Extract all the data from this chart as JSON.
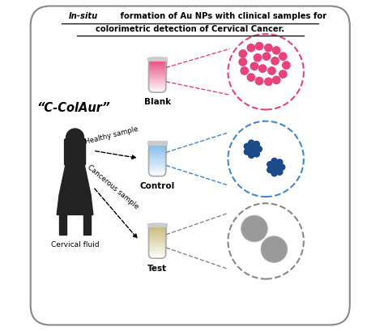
{
  "title_line1_italic": "In-situ",
  "title_line1_rest": " formation of Au NPs with clinical samples for",
  "title_line2": "colorimetric detection of Cervical Cancer.",
  "background_color": "#ffffff",
  "border_color": "#888888",
  "label_blank": "Blank",
  "label_control": "Control",
  "label_test": "Test",
  "label_ccolaur": "“C-ColAur”",
  "label_cervical": "Cervical fluid",
  "label_healthy": "Healthy sample",
  "label_cancerous": "Cancerous sample",
  "tube_blank_color_bottom": "#e8437a",
  "tube_blank_color_top": "#ffffff",
  "tube_control_color_bottom": "#7ab8e8",
  "tube_control_color_top": "#ffffff",
  "tube_test_color_bottom": "#c8b870",
  "tube_test_color_top": "#ffffff",
  "circle_blank_border": "#e8437a",
  "circle_control_border": "#4488cc",
  "circle_test_border": "#888888",
  "dot_pink": "#e8437a",
  "dot_blue": "#1a4a8a",
  "dot_gray": "#888888",
  "arrow_blank_color": "#e8437a",
  "arrow_control_color": "#4488cc",
  "arrow_test_color": "#888888",
  "person_color": "#222222",
  "fig_width": 4.74,
  "fig_height": 4.09
}
